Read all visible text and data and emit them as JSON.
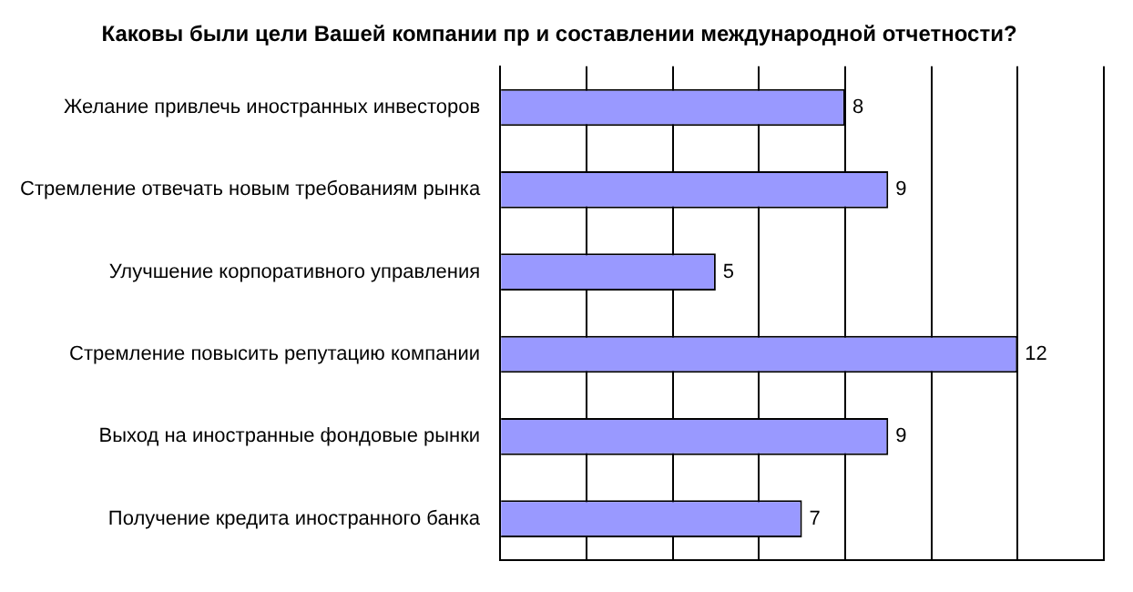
{
  "chart_data": {
    "type": "bar",
    "orientation": "horizontal",
    "title": "Каковы были цели Вашей компании пр и составлении международной отчетности?",
    "categories": [
      "Желание привлечь иностранных инвесторов",
      "Стремление отвечать новым требованиям рынка",
      "Улучшение корпоративного управления",
      "Стремление повысить репутацию компании",
      "Выход на иностранные фондовые рынки",
      "Получение кредита иностранного банка"
    ],
    "values": [
      8,
      9,
      5,
      12,
      9,
      7
    ],
    "color": "#9999ff",
    "xlim": [
      0,
      14
    ],
    "xticks": [
      {
        "value": 0,
        "label": null
      },
      {
        "value": 2,
        "label": null
      },
      {
        "value": 4,
        "label": null
      },
      {
        "value": 6,
        "label": null
      },
      {
        "value": 8,
        "label": null
      },
      {
        "value": 10,
        "label": null
      },
      {
        "value": 12,
        "label": null
      },
      {
        "value": 14,
        "label": null
      }
    ],
    "grid": "x",
    "tick_labels": "y",
    "data_labels": true,
    "legend": false
  }
}
